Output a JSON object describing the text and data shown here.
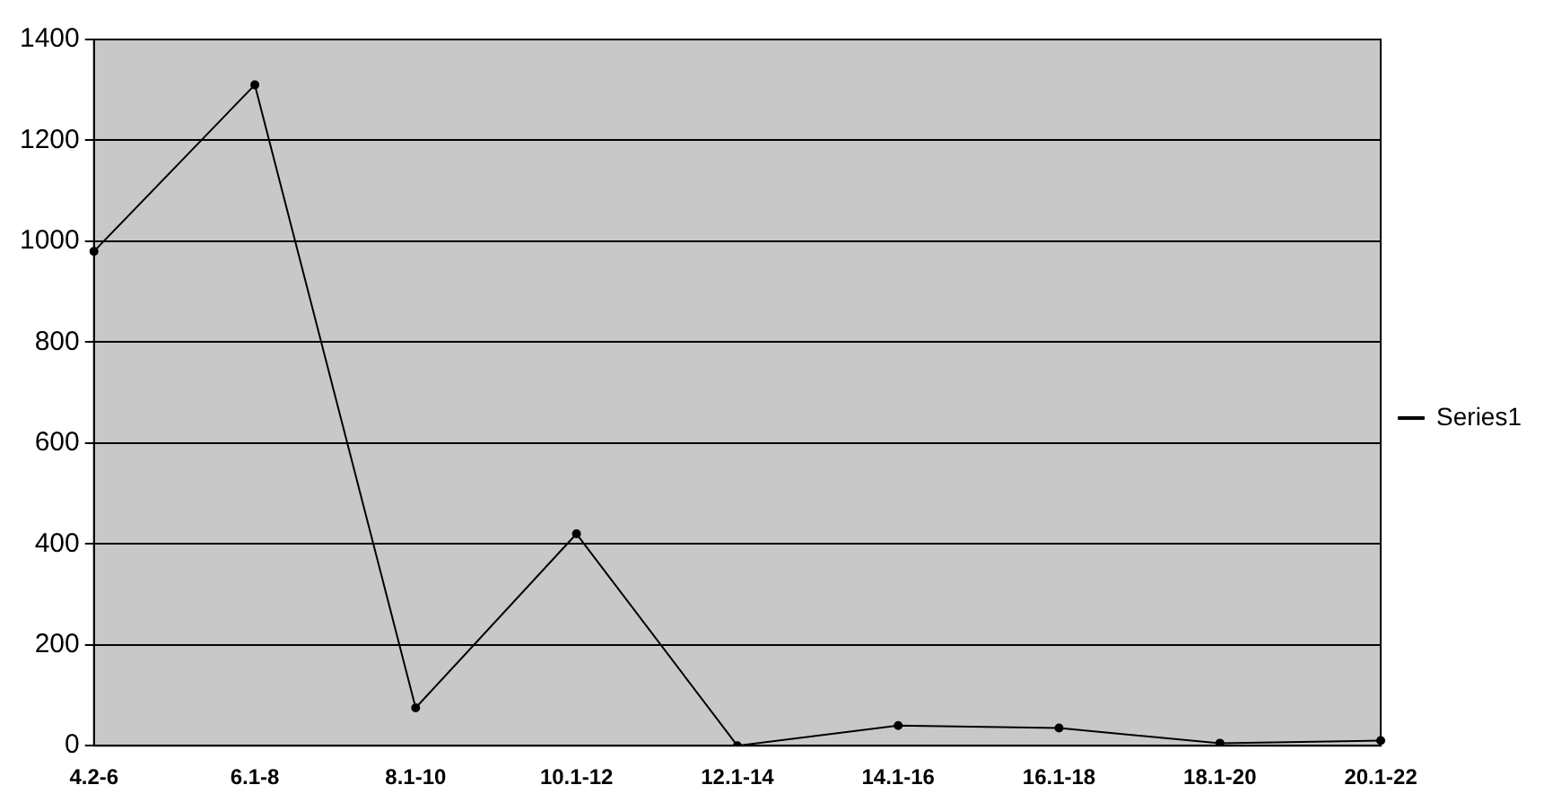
{
  "chart_data": {
    "type": "line",
    "categories": [
      "4.2-6",
      "6.1-8",
      "8.1-10",
      "10.1-12",
      "12.1-14",
      "14.1-16",
      "16.1-18",
      "18.1-20",
      "20.1-22"
    ],
    "series": [
      {
        "name": "Series1",
        "color": "#000000",
        "values": [
          980,
          1310,
          75,
          420,
          0,
          40,
          35,
          5,
          10
        ]
      }
    ],
    "ylim": [
      0,
      1400
    ],
    "yticks": [
      0,
      200,
      400,
      600,
      800,
      1000,
      1200,
      1400
    ],
    "grid": "y",
    "legend": "right",
    "marker": "circle"
  }
}
